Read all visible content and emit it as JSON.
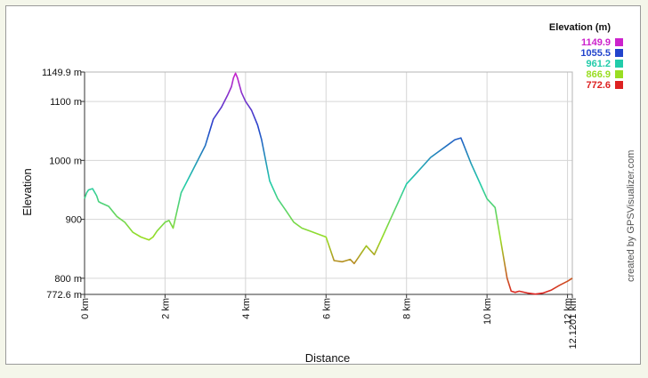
{
  "chart_data": {
    "type": "line",
    "title": "",
    "xlabel": "Distance",
    "ylabel": "Elevation",
    "x_unit": "km",
    "y_unit": "m",
    "xlim": [
      0,
      12.1201
    ],
    "ylim": [
      772.6,
      1149.9
    ],
    "x_ticks": [
      {
        "value": 0,
        "label": "0 km"
      },
      {
        "value": 2,
        "label": "2 km"
      },
      {
        "value": 4,
        "label": "4 km"
      },
      {
        "value": 6,
        "label": "6 km"
      },
      {
        "value": 8,
        "label": "8 km"
      },
      {
        "value": 10,
        "label": "10 km"
      },
      {
        "value": 12,
        "label": "12 km"
      },
      {
        "value": 12.1201,
        "label": "12.1201 km"
      }
    ],
    "y_ticks": [
      {
        "value": 772.6,
        "label": "772.6 m"
      },
      {
        "value": 800,
        "label": "800 m"
      },
      {
        "value": 900,
        "label": "900"
      },
      {
        "value": 1000,
        "label": "1000 m"
      },
      {
        "value": 1100,
        "label": "1100 m"
      },
      {
        "value": 1149.9,
        "label": "1149.9 m"
      }
    ],
    "grid": true,
    "legend": {
      "title": "Elevation (m)",
      "placement": "top-right",
      "entries": [
        {
          "label": "1149.9",
          "color": "#cc22cc"
        },
        {
          "label": "1055.5",
          "color": "#2244cc"
        },
        {
          "label": "961.2",
          "color": "#22ccaa"
        },
        {
          "label": "866.9",
          "color": "#99dd22"
        },
        {
          "label": "772.6",
          "color": "#dd2222"
        }
      ]
    },
    "series": [
      {
        "x": [
          0,
          0.05,
          0.1,
          0.2,
          0.3,
          0.35,
          0.4,
          0.6,
          0.8,
          1.0,
          1.2,
          1.4,
          1.6,
          1.7,
          1.8,
          2.0,
          2.1,
          2.2,
          2.4,
          2.7,
          3.0,
          3.2,
          3.4,
          3.55,
          3.65,
          3.7,
          3.75,
          3.8,
          3.9,
          4.0,
          4.1,
          4.15,
          4.3,
          4.4,
          4.6,
          4.8,
          5.0,
          5.2,
          5.4,
          5.6,
          5.8,
          6.0,
          6.2,
          6.4,
          6.5,
          6.6,
          6.7,
          6.8,
          6.9,
          7.0,
          7.2,
          7.4,
          7.6,
          7.8,
          8.0,
          8.2,
          8.4,
          8.6,
          8.8,
          9.0,
          9.2,
          9.35,
          9.4,
          9.6,
          9.8,
          10.0,
          10.2,
          10.4,
          10.5,
          10.6,
          10.7,
          10.8,
          11.0,
          11.2,
          11.4,
          11.6,
          11.8,
          12.0,
          12.12
        ],
        "values": [
          935,
          945,
          950,
          952,
          940,
          930,
          928,
          922,
          905,
          895,
          878,
          870,
          865,
          870,
          880,
          895,
          898,
          885,
          945,
          985,
          1025,
          1070,
          1090,
          1110,
          1125,
          1140,
          1148,
          1140,
          1115,
          1100,
          1090,
          1085,
          1060,
          1035,
          965,
          935,
          915,
          895,
          885,
          880,
          875,
          870,
          830,
          828,
          830,
          832,
          825,
          835,
          845,
          855,
          840,
          870,
          900,
          930,
          960,
          975,
          990,
          1005,
          1015,
          1025,
          1035,
          1038,
          1030,
          995,
          965,
          935,
          920,
          840,
          800,
          778,
          776,
          778,
          775,
          773,
          775,
          780,
          788,
          795,
          800
        ]
      }
    ],
    "credit": "created by GPSVisualizer.com"
  }
}
